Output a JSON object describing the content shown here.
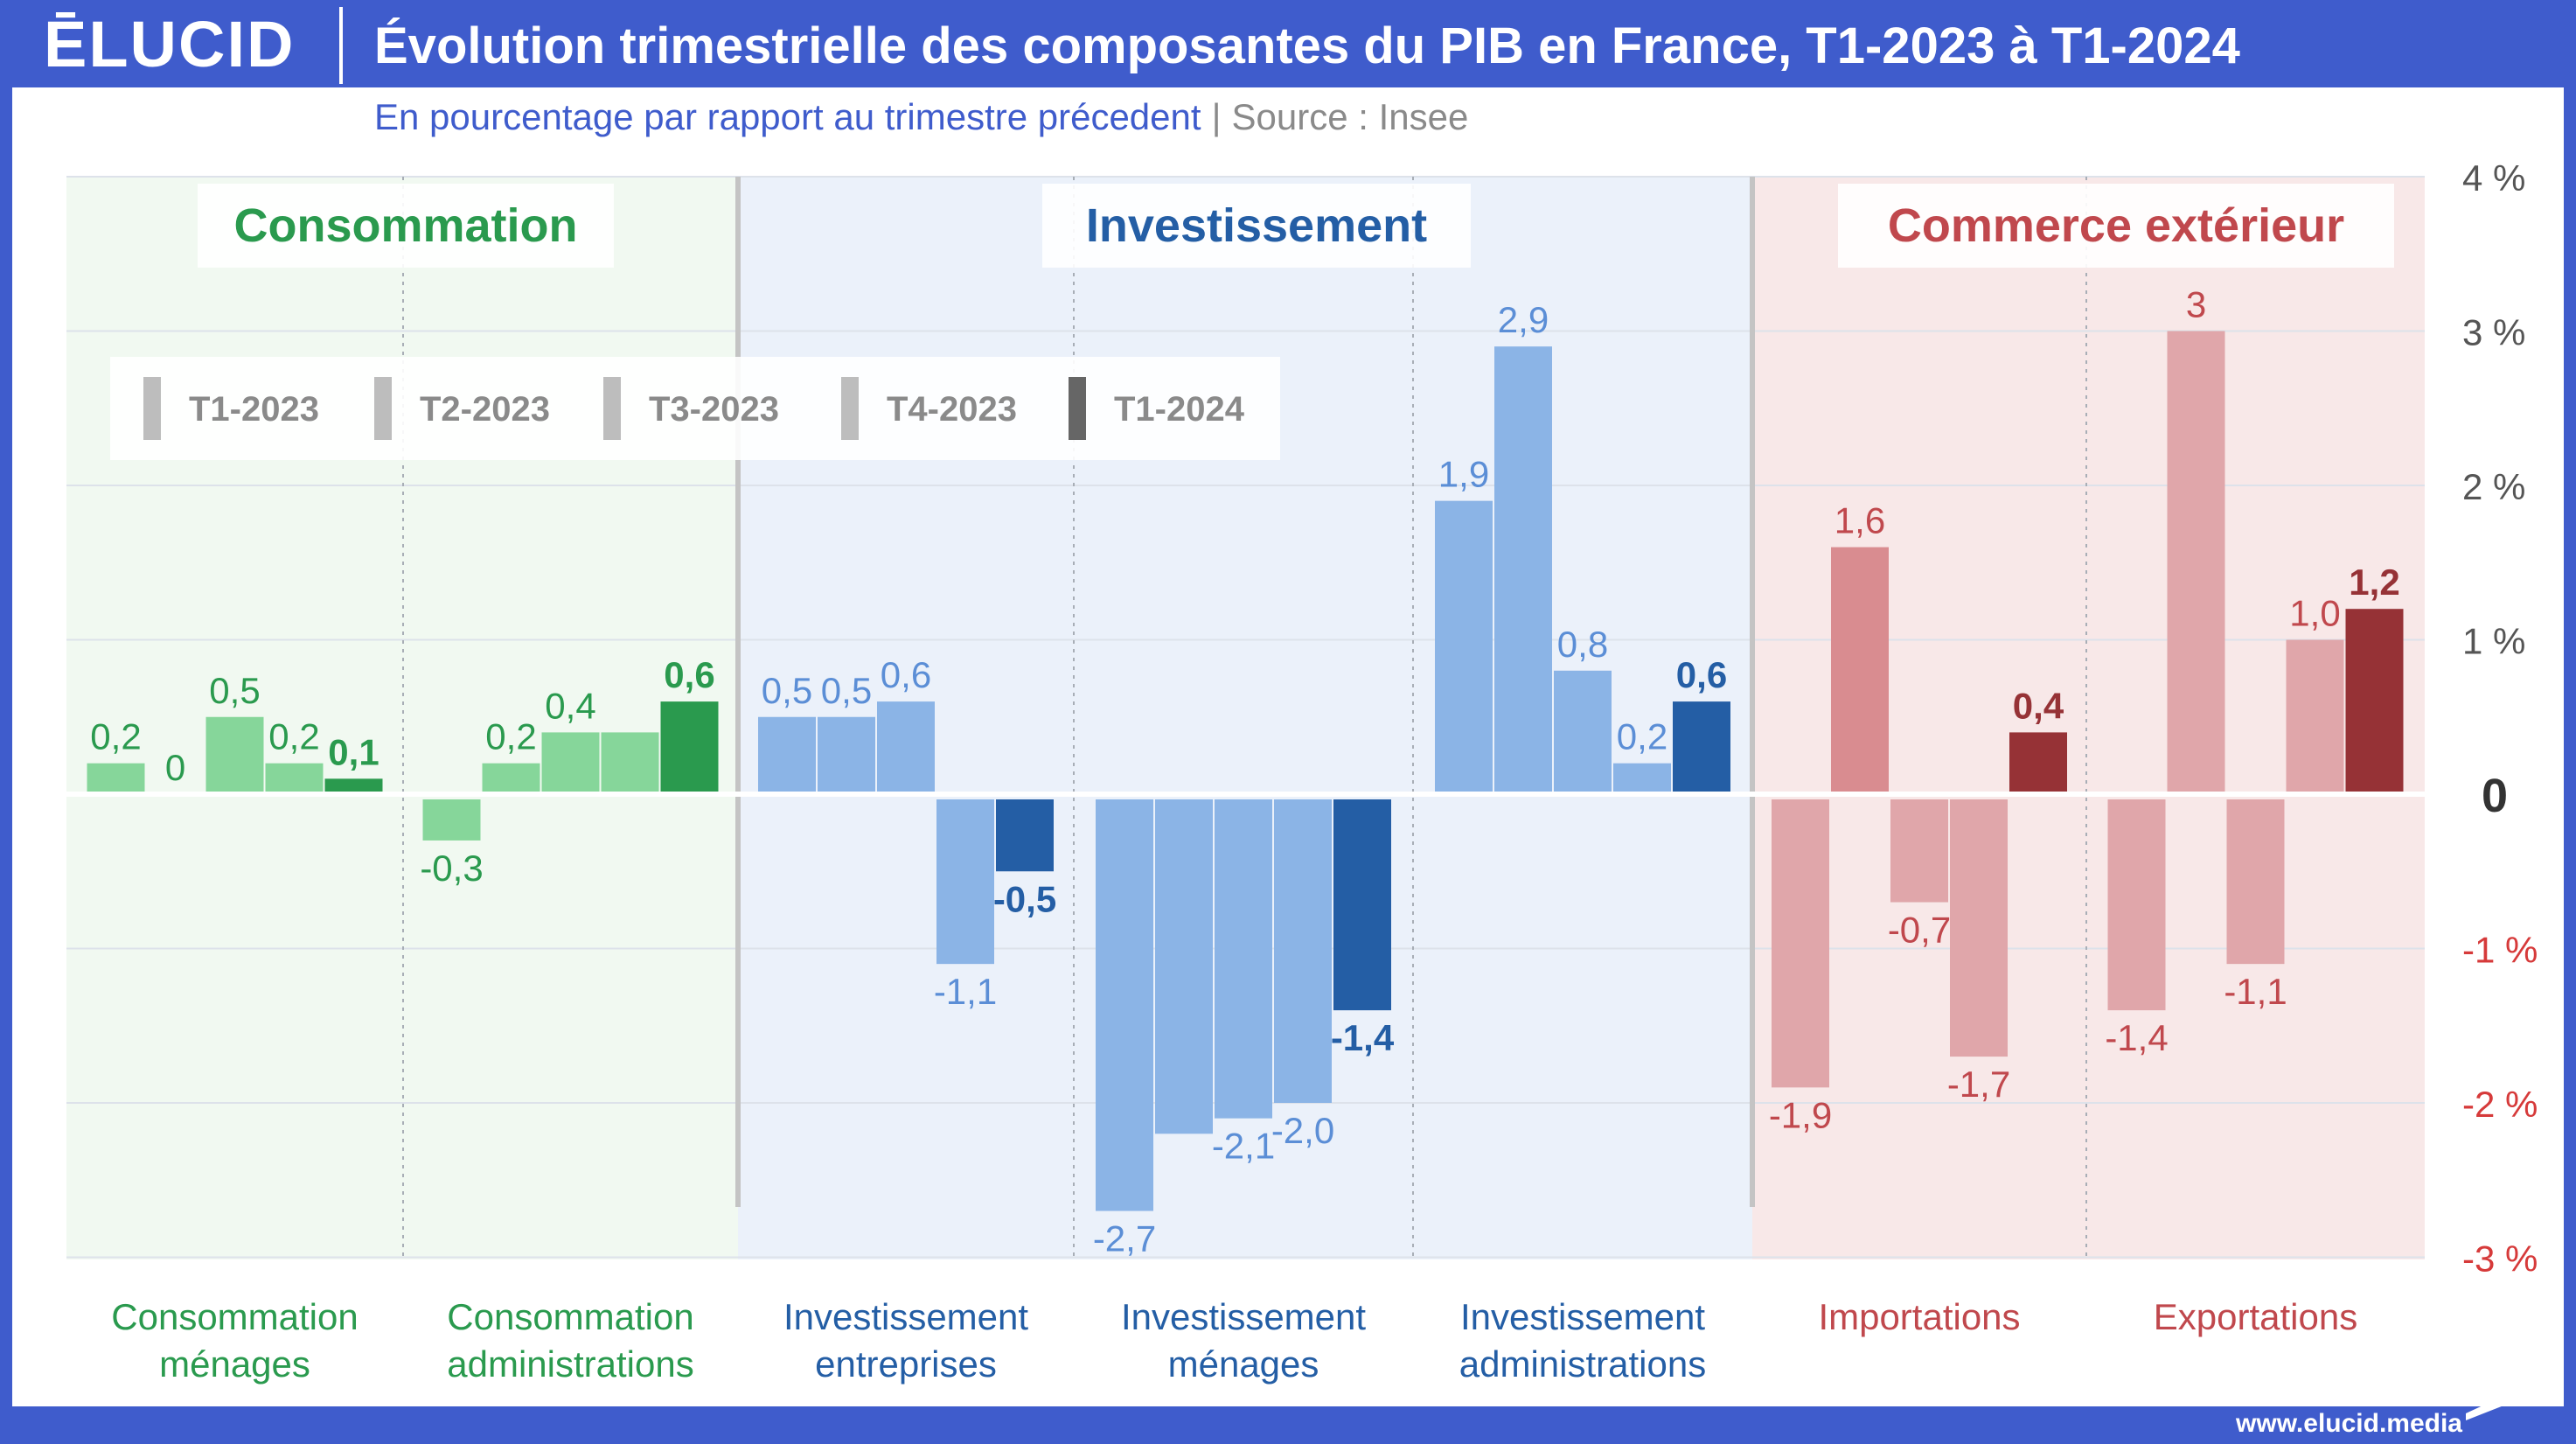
{
  "header": {
    "logo": "ĒLUCID",
    "title": "Évolution trimestrielle des composantes du PIB en France, T1-2023 à T1-2024",
    "subtitle": "En pourcentage par rapport au trimestre précedent",
    "separator": "|",
    "source": "Source : Insee"
  },
  "footer": {
    "url": "www.elucid.media"
  },
  "colors": {
    "green_light": "#86d69a",
    "green_dark": "#2a9a4e",
    "green_text": "#2a9a4e",
    "blue_light": "#8bb4e6",
    "blue_dark": "#245ea5",
    "blue_text": "#245ea5",
    "red_light": "#e0a6aa",
    "red_mid": "#d98c90",
    "red_dark": "#963236",
    "red_text": "#c0484d",
    "bg_green": "#f1f9f1",
    "bg_blue": "#ebf1fa",
    "bg_red": "#f8e8e8"
  },
  "chart_data": {
    "type": "bar",
    "ylim": [
      -3,
      4
    ],
    "ytick_labels": [
      {
        "value": 4,
        "label": "4 %"
      },
      {
        "value": 3,
        "label": "3 %"
      },
      {
        "value": 2,
        "label": "2 %"
      },
      {
        "value": 1,
        "label": "1 %"
      },
      {
        "value": 0,
        "label": "0"
      },
      {
        "value": -1,
        "label": "-1 %"
      },
      {
        "value": -2,
        "label": "-2 %"
      },
      {
        "value": -3,
        "label": "-3 %"
      }
    ],
    "legend": {
      "placement": "top-left",
      "items": [
        "T1-2023",
        "T2-2023",
        "T3-2023",
        "T4-2023",
        "T1-2024"
      ]
    },
    "groups": [
      {
        "name": "Consommation",
        "theme": "green",
        "categories": [
          {
            "label": [
              "Consommation",
              "ménages"
            ],
            "values": [
              0.2,
              0,
              0.5,
              0.2,
              0.1
            ],
            "labels": [
              "0,2",
              "0",
              "0,5",
              "0,2",
              "0,1"
            ]
          },
          {
            "label": [
              "Consommation",
              "administrations"
            ],
            "values": [
              -0.3,
              0.2,
              0.4,
              0.4,
              0.6
            ],
            "labels": [
              "-0,3",
              "0,2",
              "0,4",
              "",
              "0,6"
            ]
          }
        ]
      },
      {
        "name": "Investissement",
        "theme": "blue",
        "categories": [
          {
            "label": [
              "Investissement",
              "entreprises"
            ],
            "values": [
              0.5,
              0.5,
              0.6,
              -1.1,
              -0.5
            ],
            "labels": [
              "0,5",
              "0,5",
              "0,6",
              "-1,1",
              "-0,5"
            ]
          },
          {
            "label": [
              "Investissement",
              "ménages"
            ],
            "values": [
              -2.7,
              -2.2,
              -2.1,
              -2.0,
              -1.4
            ],
            "labels": [
              "-2,7",
              "",
              "-2,1",
              "-2,0",
              "-1,4"
            ]
          },
          {
            "label": [
              "Investissement",
              "administrations"
            ],
            "values": [
              1.9,
              2.9,
              0.8,
              0.2,
              0.6
            ],
            "labels": [
              "1,9",
              "2,9",
              "0,8",
              "0,2",
              "0,6"
            ]
          }
        ]
      },
      {
        "name": "Commerce extérieur",
        "theme": "red",
        "categories": [
          {
            "label": [
              "Importations"
            ],
            "values": [
              -1.9,
              1.6,
              -0.7,
              -1.7,
              0.4
            ],
            "labels": [
              "-1,9",
              "1,6",
              "-0,7",
              "-1,7",
              "0,4"
            ]
          },
          {
            "label": [
              "Exportations"
            ],
            "values": [
              -1.4,
              3,
              -1.1,
              1.0,
              1.2
            ],
            "labels": [
              "-1,4",
              "3",
              "-1,1",
              "1,0",
              "1,2"
            ]
          }
        ]
      }
    ]
  }
}
